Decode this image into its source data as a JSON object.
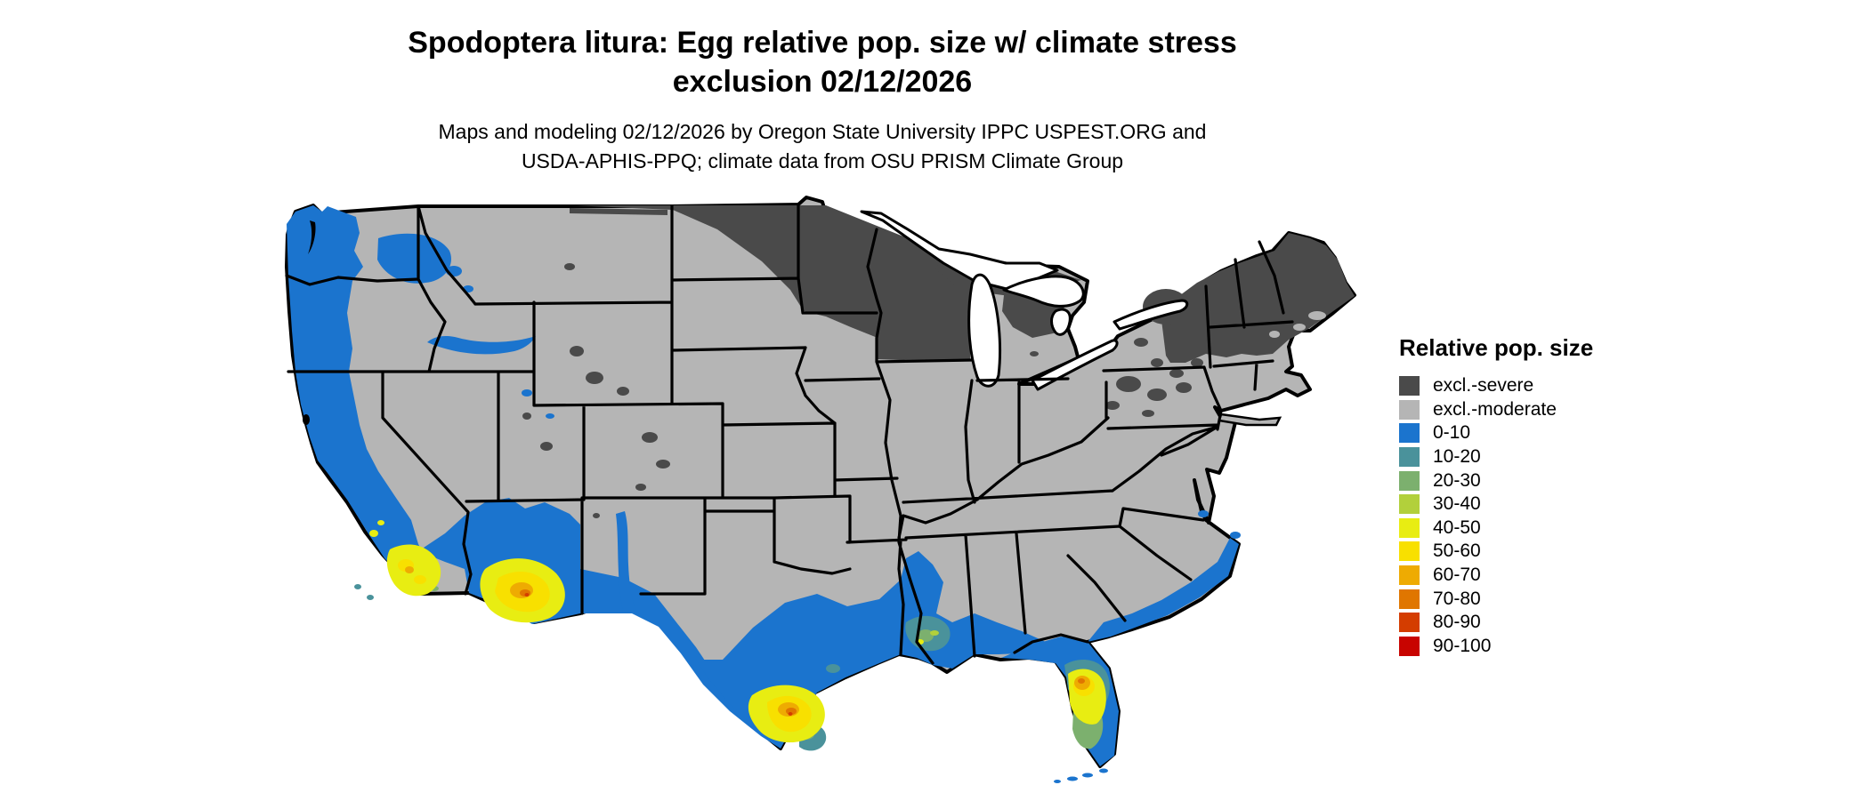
{
  "figure": {
    "title": "Spodoptera litura: Egg relative pop. size w/ climate stress\nexclusion 02/12/2026",
    "subtitle": "Maps and modeling 02/12/2026 by Oregon State University IPPC USPEST.ORG and\nUSDA-APHIS-PPQ; climate data from OSU PRISM Climate Group"
  },
  "legend": {
    "title": "Relative pop. size",
    "items": [
      {
        "label": "excl.-severe",
        "color": "#4A4A4A"
      },
      {
        "label": "excl.-moderate",
        "color": "#B5B5B5"
      },
      {
        "label": "0-10",
        "color": "#1B74CE"
      },
      {
        "label": "10-20",
        "color": "#4A929B"
      },
      {
        "label": "20-30",
        "color": "#7CB06E"
      },
      {
        "label": "30-40",
        "color": "#B2D03B"
      },
      {
        "label": "40-50",
        "color": "#E8ED12"
      },
      {
        "label": "50-60",
        "color": "#F8E000"
      },
      {
        "label": "60-70",
        "color": "#EEAB02"
      },
      {
        "label": "70-80",
        "color": "#E07600"
      },
      {
        "label": "80-90",
        "color": "#D43D00"
      },
      {
        "label": "90-100",
        "color": "#C80400"
      }
    ]
  },
  "map": {
    "border_color": "#000000",
    "water_color": "#FFFFFF",
    "base_fill_label": "excl.-moderate"
  }
}
